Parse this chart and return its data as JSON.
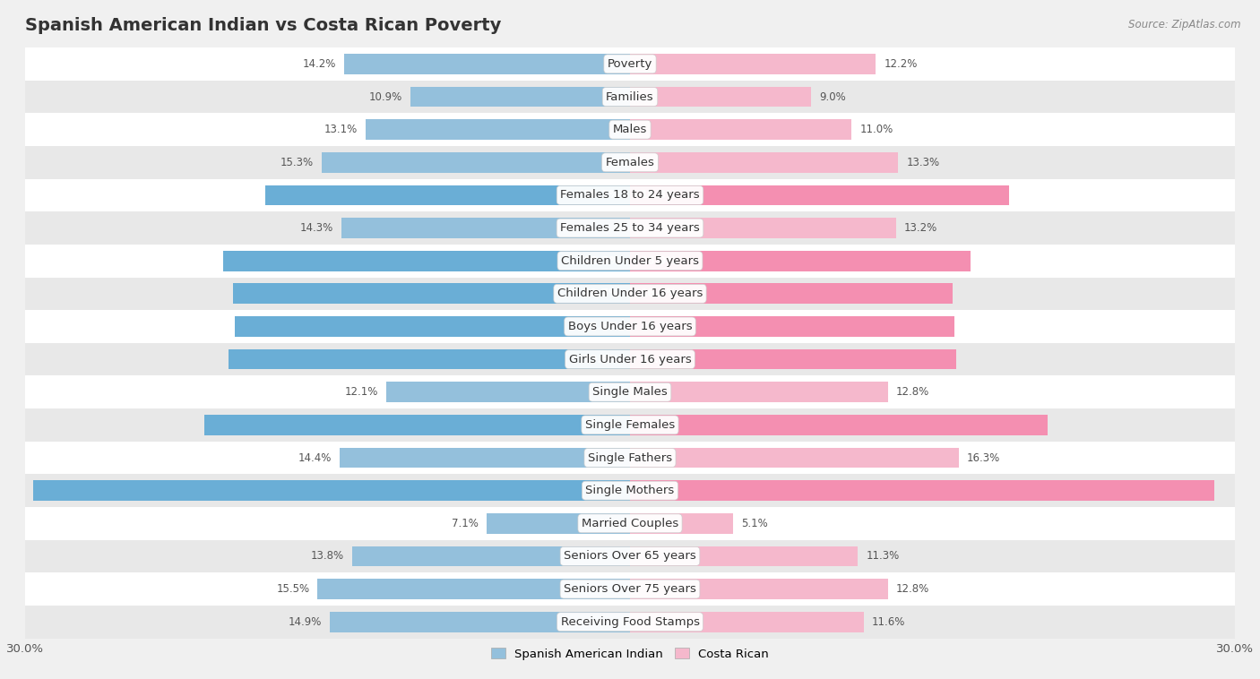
{
  "title": "Spanish American Indian vs Costa Rican Poverty",
  "source": "Source: ZipAtlas.com",
  "categories": [
    "Poverty",
    "Families",
    "Males",
    "Females",
    "Females 18 to 24 years",
    "Females 25 to 34 years",
    "Children Under 5 years",
    "Children Under 16 years",
    "Boys Under 16 years",
    "Girls Under 16 years",
    "Single Males",
    "Single Females",
    "Single Fathers",
    "Single Mothers",
    "Married Couples",
    "Seniors Over 65 years",
    "Seniors Over 75 years",
    "Receiving Food Stamps"
  ],
  "spanish_values": [
    14.2,
    10.9,
    13.1,
    15.3,
    18.1,
    14.3,
    20.2,
    19.7,
    19.6,
    19.9,
    12.1,
    21.1,
    14.4,
    29.6,
    7.1,
    13.8,
    15.5,
    14.9
  ],
  "costa_rican_values": [
    12.2,
    9.0,
    11.0,
    13.3,
    18.8,
    13.2,
    16.9,
    16.0,
    16.1,
    16.2,
    12.8,
    20.7,
    16.3,
    29.0,
    5.1,
    11.3,
    12.8,
    11.6
  ],
  "spanish_color_normal": "#94c0dc",
  "costa_rican_color_normal": "#f5b8cc",
  "spanish_color_highlight": "#6aaed6",
  "costa_rican_color_highlight": "#f48fb1",
  "highlight_rows": [
    4,
    6,
    7,
    8,
    9,
    11,
    13
  ],
  "background_color": "#f0f0f0",
  "row_bg_even": "#ffffff",
  "row_bg_odd": "#e8e8e8",
  "axis_max": 30.0,
  "bar_height": 0.62,
  "title_fontsize": 14,
  "label_fontsize": 9.5,
  "value_fontsize": 8.5,
  "legend_label_1": "Spanish American Indian",
  "legend_label_2": "Costa Rican"
}
